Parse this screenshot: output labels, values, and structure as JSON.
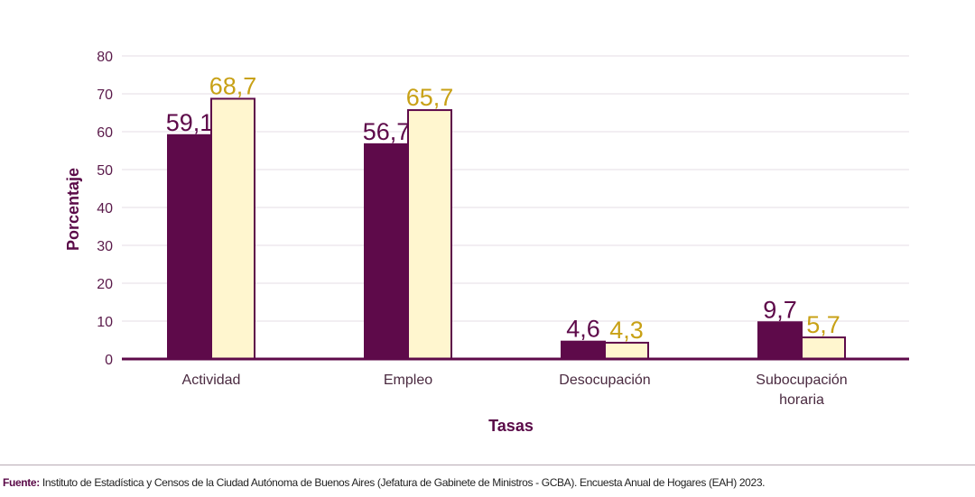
{
  "chart_data": {
    "type": "bar",
    "title": "",
    "categories": [
      "Actividad",
      "Empleo",
      "Desocupación",
      [
        "Subocupación",
        "horaria"
      ]
    ],
    "series": [
      {
        "values": [
          59.1,
          56.7,
          4.6,
          9.7
        ],
        "labels": [
          "59,1",
          "56,7",
          "4,6",
          "9,7"
        ],
        "color": "#5e0a4a",
        "label_color": "#5e0a4a"
      },
      {
        "values": [
          68.7,
          65.7,
          4.3,
          5.7
        ],
        "labels": [
          "68,7",
          "65,7",
          "4,3",
          "5,7"
        ],
        "color": "#fff6cf",
        "label_color": "#c8a116"
      }
    ],
    "xlabel": "Tasas",
    "ylabel": "Porcentaje",
    "ylim": [
      0,
      80
    ],
    "yticks": [
      "0",
      "10",
      "20",
      "30",
      "40",
      "50",
      "60",
      "70",
      "80"
    ],
    "grid": true,
    "legend": "none"
  },
  "source": {
    "label": "Fuente:",
    "text": " Instituto de Estadística y Censos de la Ciudad Autónoma de Buenos Aires (Jefatura de Gabinete de Ministros - GCBA). Encuesta Anual de Hogares (EAH) 2023."
  },
  "colors": {
    "bar_outline": "#5e0a4a",
    "grid": "#e6dce4"
  }
}
